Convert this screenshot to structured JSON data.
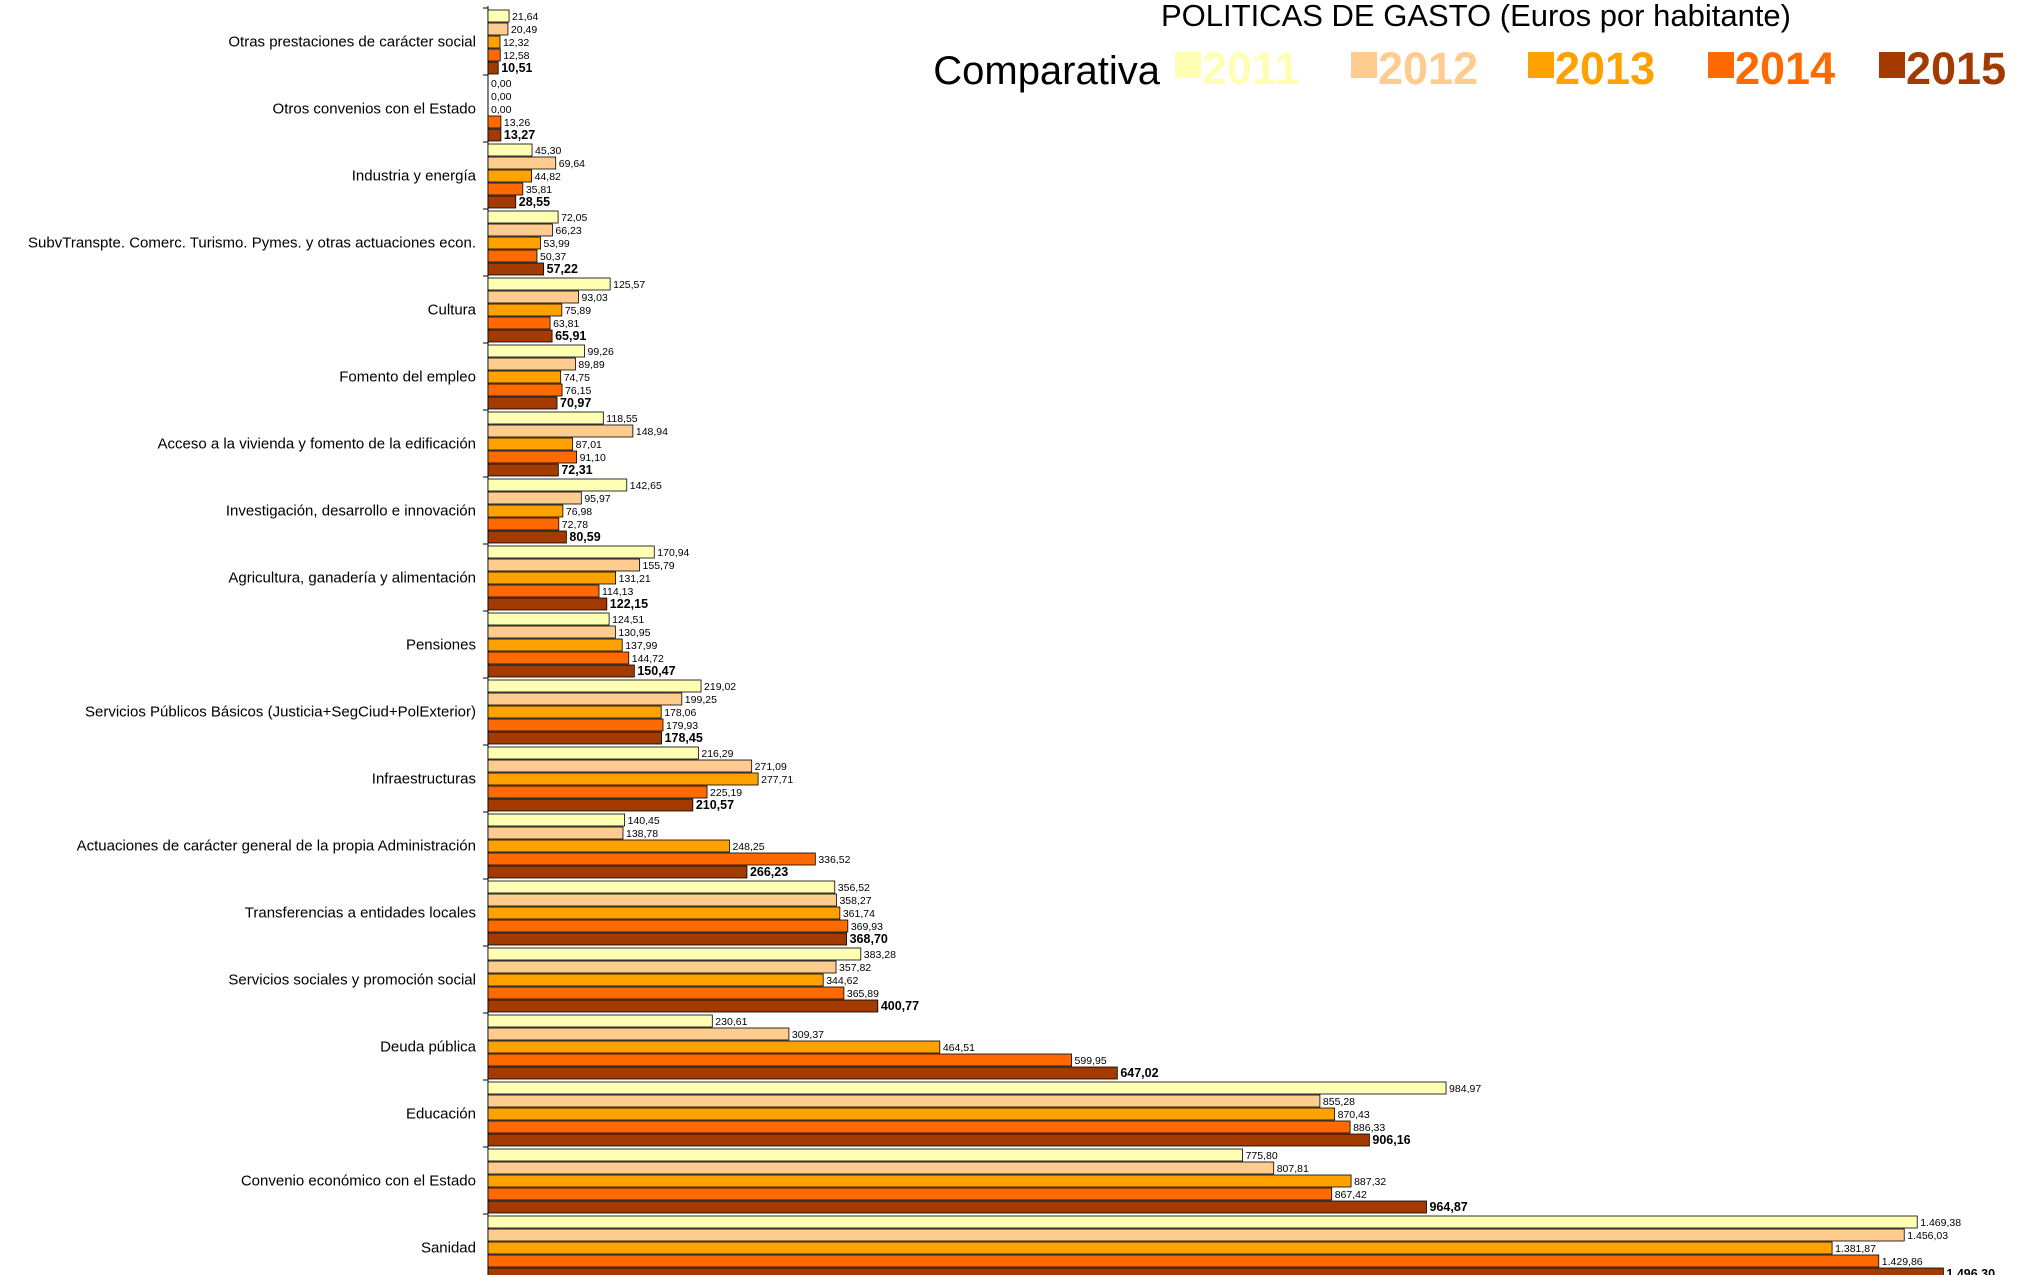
{
  "chart_data": {
    "type": "bar",
    "orientation": "horizontal",
    "title": "POLITICAS DE GASTO (Euros por habitante)",
    "subtitle": "Comparativa",
    "series": [
      {
        "name": "2011",
        "color": "#FFFFB3"
      },
      {
        "name": "2012",
        "color": "#FFCC8F"
      },
      {
        "name": "2013",
        "color": "#FFA200"
      },
      {
        "name": "2014",
        "color": "#FF6A00"
      },
      {
        "name": "2015",
        "color": "#A33A00"
      }
    ],
    "categories": [
      {
        "name": "Otras prestaciones de carácter social",
        "values": [
          21.64,
          20.49,
          12.32,
          12.58,
          10.51
        ],
        "labels": [
          "21,64",
          "20,49",
          "12,32",
          "12,58",
          "10,51"
        ]
      },
      {
        "name": "Otros convenios con el Estado",
        "values": [
          0,
          0,
          0,
          13.26,
          13.27
        ],
        "labels": [
          "0,00",
          "0,00",
          "0,00",
          "13,26",
          "13,27"
        ]
      },
      {
        "name": "Industria y energía",
        "values": [
          45.3,
          69.64,
          44.82,
          35.81,
          28.55
        ],
        "labels": [
          "45,30",
          "69,64",
          "44,82",
          "35,81",
          "28,55"
        ]
      },
      {
        "name": "SubvTranspte. Comerc. Turismo. Pymes. y otras actuaciones econ.",
        "values": [
          72.05,
          66.23,
          53.99,
          50.37,
          57.22
        ],
        "labels": [
          "72,05",
          "66,23",
          "53,99",
          "50,37",
          "57,22"
        ]
      },
      {
        "name": "Cultura",
        "values": [
          125.57,
          93.03,
          75.89,
          63.81,
          65.91
        ],
        "labels": [
          "125,57",
          "93,03",
          "75,89",
          "63,81",
          "65,91"
        ]
      },
      {
        "name": "Fomento del empleo",
        "values": [
          99.26,
          89.89,
          74.75,
          76.15,
          70.97
        ],
        "labels": [
          "99,26",
          "89,89",
          "74,75",
          "76,15",
          "70,97"
        ]
      },
      {
        "name": "Acceso a la vivienda y fomento de la edificación",
        "values": [
          118.55,
          148.94,
          87.01,
          91.1,
          72.31
        ],
        "labels": [
          "118,55",
          "148,94",
          "87,01",
          "91,10",
          "72,31"
        ]
      },
      {
        "name": "Investigación, desarrollo e innovación",
        "values": [
          142.65,
          95.97,
          76.98,
          72.78,
          80.59
        ],
        "labels": [
          "142,65",
          "95,97",
          "76,98",
          "72,78",
          "80,59"
        ]
      },
      {
        "name": "Agricultura, ganadería y alimentación",
        "values": [
          170.94,
          155.79,
          131.21,
          114.13,
          122.15
        ],
        "labels": [
          "170,94",
          "155,79",
          "131,21",
          "114,13",
          "122,15"
        ]
      },
      {
        "name": "Pensiones",
        "values": [
          124.51,
          130.95,
          137.99,
          144.72,
          150.47
        ],
        "labels": [
          "124,51",
          "130,95",
          "137,99",
          "144,72",
          "150,47"
        ]
      },
      {
        "name": "Servicios Públicos Básicos (Justicia+SegCiud+PolExterior)",
        "values": [
          219.02,
          199.25,
          178.06,
          179.93,
          178.45
        ],
        "labels": [
          "219,02",
          "199,25",
          "178,06",
          "179,93",
          "178,45"
        ]
      },
      {
        "name": "Infraestructuras",
        "values": [
          216.29,
          271.09,
          277.71,
          225.19,
          210.57
        ],
        "labels": [
          "216,29",
          "271,09",
          "277,71",
          "225,19",
          "210,57"
        ]
      },
      {
        "name": "Actuaciones de carácter general de la propia Administración",
        "values": [
          140.45,
          138.78,
          248.25,
          336.52,
          266.23
        ],
        "labels": [
          "140,45",
          "138,78",
          "248,25",
          "336,52",
          "266,23"
        ]
      },
      {
        "name": "Transferencias a entidades locales",
        "values": [
          356.52,
          358.27,
          361.74,
          369.93,
          368.7
        ],
        "labels": [
          "356,52",
          "358,27",
          "361,74",
          "369,93",
          "368,70"
        ]
      },
      {
        "name": "Servicios sociales y promoción social",
        "values": [
          383.28,
          357.82,
          344.62,
          365.89,
          400.77
        ],
        "labels": [
          "383,28",
          "357,82",
          "344,62",
          "365,89",
          "400,77"
        ]
      },
      {
        "name": "Deuda pública",
        "values": [
          230.61,
          309.37,
          464.51,
          599.95,
          647.02
        ],
        "labels": [
          "230,61",
          "309,37",
          "464,51",
          "599,95",
          "647,02"
        ]
      },
      {
        "name": "Educación",
        "values": [
          984.97,
          855.28,
          870.43,
          886.33,
          906.16
        ],
        "labels": [
          "984,97",
          "855,28",
          "870,43",
          "886,33",
          "906,16"
        ]
      },
      {
        "name": "Convenio económico con el Estado",
        "values": [
          775.8,
          807.81,
          887.32,
          867.42,
          964.87
        ],
        "labels": [
          "775,80",
          "807,81",
          "887,32",
          "867,42",
          "964,87"
        ]
      },
      {
        "name": "Sanidad",
        "values": [
          1469.38,
          1456.03,
          1381.87,
          1429.86,
          1496.3
        ],
        "labels": [
          "1.469,38",
          "1.456,03",
          "1.381,87",
          "1.429,86",
          "1.496,30"
        ]
      }
    ],
    "xlim": [
      0,
      1500
    ],
    "grid": false,
    "legend": "top-right",
    "bold_series": "2015"
  }
}
